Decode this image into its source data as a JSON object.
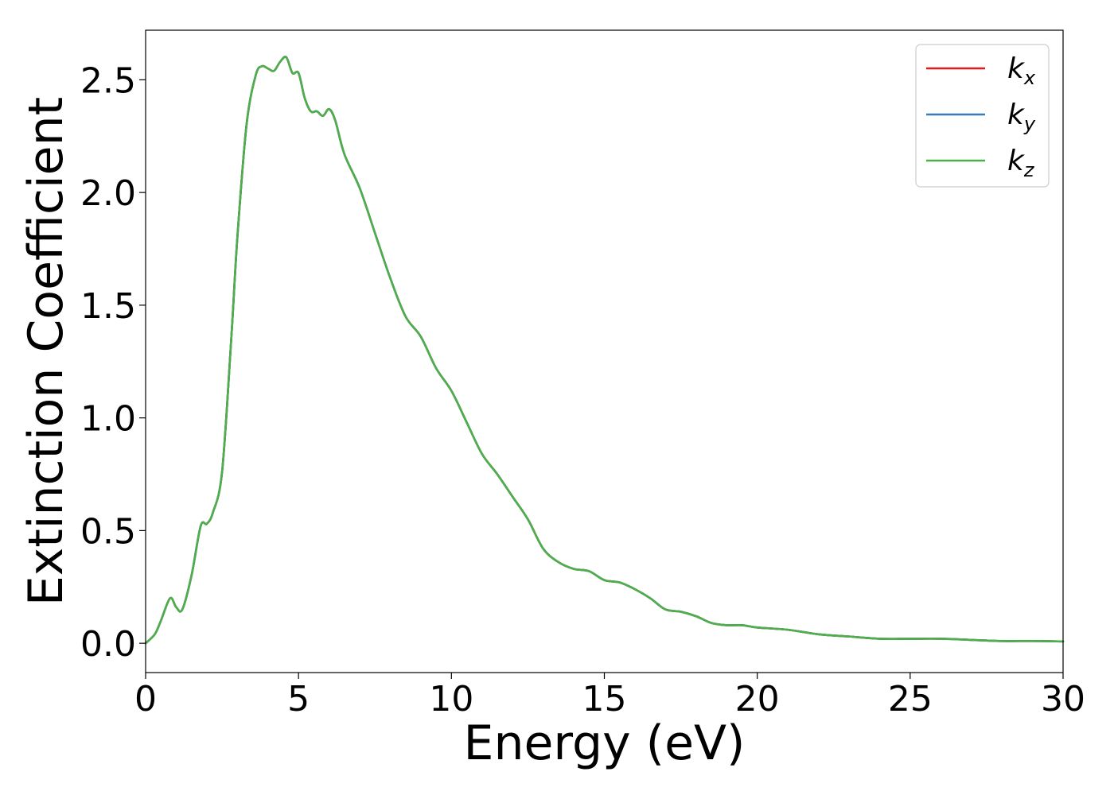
{
  "chart_data": {
    "type": "line",
    "xlabel": "Energy (eV)",
    "ylabel": "Extinction Coefficient",
    "xlim": [
      0,
      30
    ],
    "ylim": [
      -0.13,
      2.72
    ],
    "xticks": [
      0,
      5,
      10,
      15,
      20,
      25,
      30
    ],
    "xtick_labels": [
      "0",
      "5",
      "10",
      "15",
      "20",
      "25",
      "30"
    ],
    "yticks": [
      0.0,
      0.5,
      1.0,
      1.5,
      2.0,
      2.5
    ],
    "ytick_labels": [
      "0.0",
      "0.5",
      "1.0",
      "1.5",
      "2.0",
      "2.5"
    ],
    "grid": false,
    "legend_position": "top-right",
    "x": [
      0,
      0.3,
      0.5,
      0.8,
      1.0,
      1.2,
      1.5,
      1.8,
      2.0,
      2.2,
      2.5,
      2.8,
      3.0,
      3.3,
      3.6,
      3.8,
      4.0,
      4.2,
      4.4,
      4.6,
      4.8,
      5.0,
      5.2,
      5.4,
      5.6,
      5.8,
      6.0,
      6.2,
      6.5,
      7.0,
      7.5,
      8.0,
      8.5,
      9.0,
      9.5,
      10.0,
      10.5,
      11.0,
      11.5,
      12.0,
      12.5,
      13.0,
      13.5,
      14.0,
      14.5,
      15.0,
      15.5,
      16.0,
      16.5,
      17.0,
      17.5,
      18.0,
      18.5,
      19.0,
      19.5,
      20.0,
      21.0,
      22.0,
      23.0,
      24.0,
      25.0,
      26.0,
      27.0,
      28.0,
      29.0,
      30.0
    ],
    "series": [
      {
        "name": "k_x",
        "label_base": "k",
        "label_sub": "x",
        "color": "#e41a1c",
        "values": [
          0.0,
          0.04,
          0.1,
          0.2,
          0.16,
          0.15,
          0.3,
          0.52,
          0.53,
          0.58,
          0.76,
          1.35,
          1.8,
          2.3,
          2.52,
          2.56,
          2.55,
          2.54,
          2.58,
          2.6,
          2.53,
          2.53,
          2.42,
          2.36,
          2.36,
          2.34,
          2.37,
          2.32,
          2.17,
          2.02,
          1.82,
          1.62,
          1.45,
          1.36,
          1.22,
          1.12,
          0.98,
          0.84,
          0.75,
          0.65,
          0.55,
          0.42,
          0.36,
          0.33,
          0.32,
          0.28,
          0.27,
          0.24,
          0.2,
          0.15,
          0.14,
          0.12,
          0.09,
          0.08,
          0.08,
          0.07,
          0.06,
          0.04,
          0.03,
          0.02,
          0.02,
          0.02,
          0.015,
          0.01,
          0.01,
          0.008
        ]
      },
      {
        "name": "k_y",
        "label_base": "k",
        "label_sub": "y",
        "color": "#377eb8",
        "values": [
          0.0,
          0.04,
          0.1,
          0.2,
          0.16,
          0.15,
          0.3,
          0.52,
          0.53,
          0.58,
          0.76,
          1.35,
          1.8,
          2.3,
          2.52,
          2.56,
          2.55,
          2.54,
          2.58,
          2.6,
          2.53,
          2.53,
          2.42,
          2.36,
          2.36,
          2.34,
          2.37,
          2.32,
          2.17,
          2.02,
          1.82,
          1.62,
          1.45,
          1.36,
          1.22,
          1.12,
          0.98,
          0.84,
          0.75,
          0.65,
          0.55,
          0.42,
          0.36,
          0.33,
          0.32,
          0.28,
          0.27,
          0.24,
          0.2,
          0.15,
          0.14,
          0.12,
          0.09,
          0.08,
          0.08,
          0.07,
          0.06,
          0.04,
          0.03,
          0.02,
          0.02,
          0.02,
          0.015,
          0.01,
          0.01,
          0.008
        ]
      },
      {
        "name": "k_z",
        "label_base": "k",
        "label_sub": "z",
        "color": "#4daf4a",
        "values": [
          0.0,
          0.04,
          0.1,
          0.2,
          0.16,
          0.15,
          0.3,
          0.52,
          0.53,
          0.58,
          0.76,
          1.35,
          1.8,
          2.3,
          2.52,
          2.56,
          2.55,
          2.54,
          2.58,
          2.6,
          2.53,
          2.53,
          2.42,
          2.36,
          2.36,
          2.34,
          2.37,
          2.32,
          2.17,
          2.02,
          1.82,
          1.62,
          1.45,
          1.36,
          1.22,
          1.12,
          0.98,
          0.84,
          0.75,
          0.65,
          0.55,
          0.42,
          0.36,
          0.33,
          0.32,
          0.28,
          0.27,
          0.24,
          0.2,
          0.15,
          0.14,
          0.12,
          0.09,
          0.08,
          0.08,
          0.07,
          0.06,
          0.04,
          0.03,
          0.02,
          0.02,
          0.02,
          0.015,
          0.01,
          0.01,
          0.008
        ]
      }
    ]
  }
}
